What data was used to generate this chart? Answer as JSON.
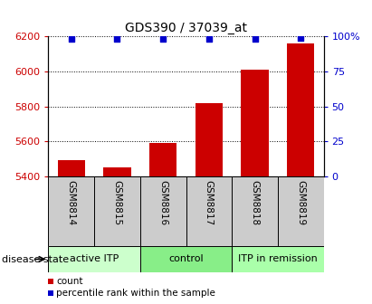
{
  "title": "GDS390 / 37039_at",
  "samples": [
    "GSM8814",
    "GSM8815",
    "GSM8816",
    "GSM8817",
    "GSM8818",
    "GSM8819"
  ],
  "counts": [
    5490,
    5450,
    5590,
    5820,
    6010,
    6160
  ],
  "percentile_ranks": [
    98,
    98,
    98,
    98,
    98,
    99
  ],
  "ylim_left": [
    5400,
    6200
  ],
  "ylim_right": [
    0,
    100
  ],
  "yticks_left": [
    5400,
    5600,
    5800,
    6000,
    6200
  ],
  "yticks_right": [
    0,
    25,
    50,
    75,
    100
  ],
  "right_tick_labels": [
    "0",
    "25",
    "50",
    "75",
    "100%"
  ],
  "bar_color": "#cc0000",
  "dot_color": "#0000cc",
  "groups": [
    {
      "label": "active ITP",
      "indices": [
        0,
        1
      ],
      "color": "#ccffcc"
    },
    {
      "label": "control",
      "indices": [
        2,
        3
      ],
      "color": "#88ee88"
    },
    {
      "label": "ITP in remission",
      "indices": [
        4,
        5
      ],
      "color": "#aaffaa"
    }
  ],
  "disease_state_label": "disease state",
  "left_tick_color": "#cc0000",
  "right_tick_color": "#0000cc",
  "sample_box_color": "#cccccc",
  "bar_width": 0.6,
  "title_fontsize": 10,
  "tick_fontsize": 8,
  "label_fontsize": 7.5,
  "legend_fontsize": 7.5,
  "group_label_fontsize": 8
}
